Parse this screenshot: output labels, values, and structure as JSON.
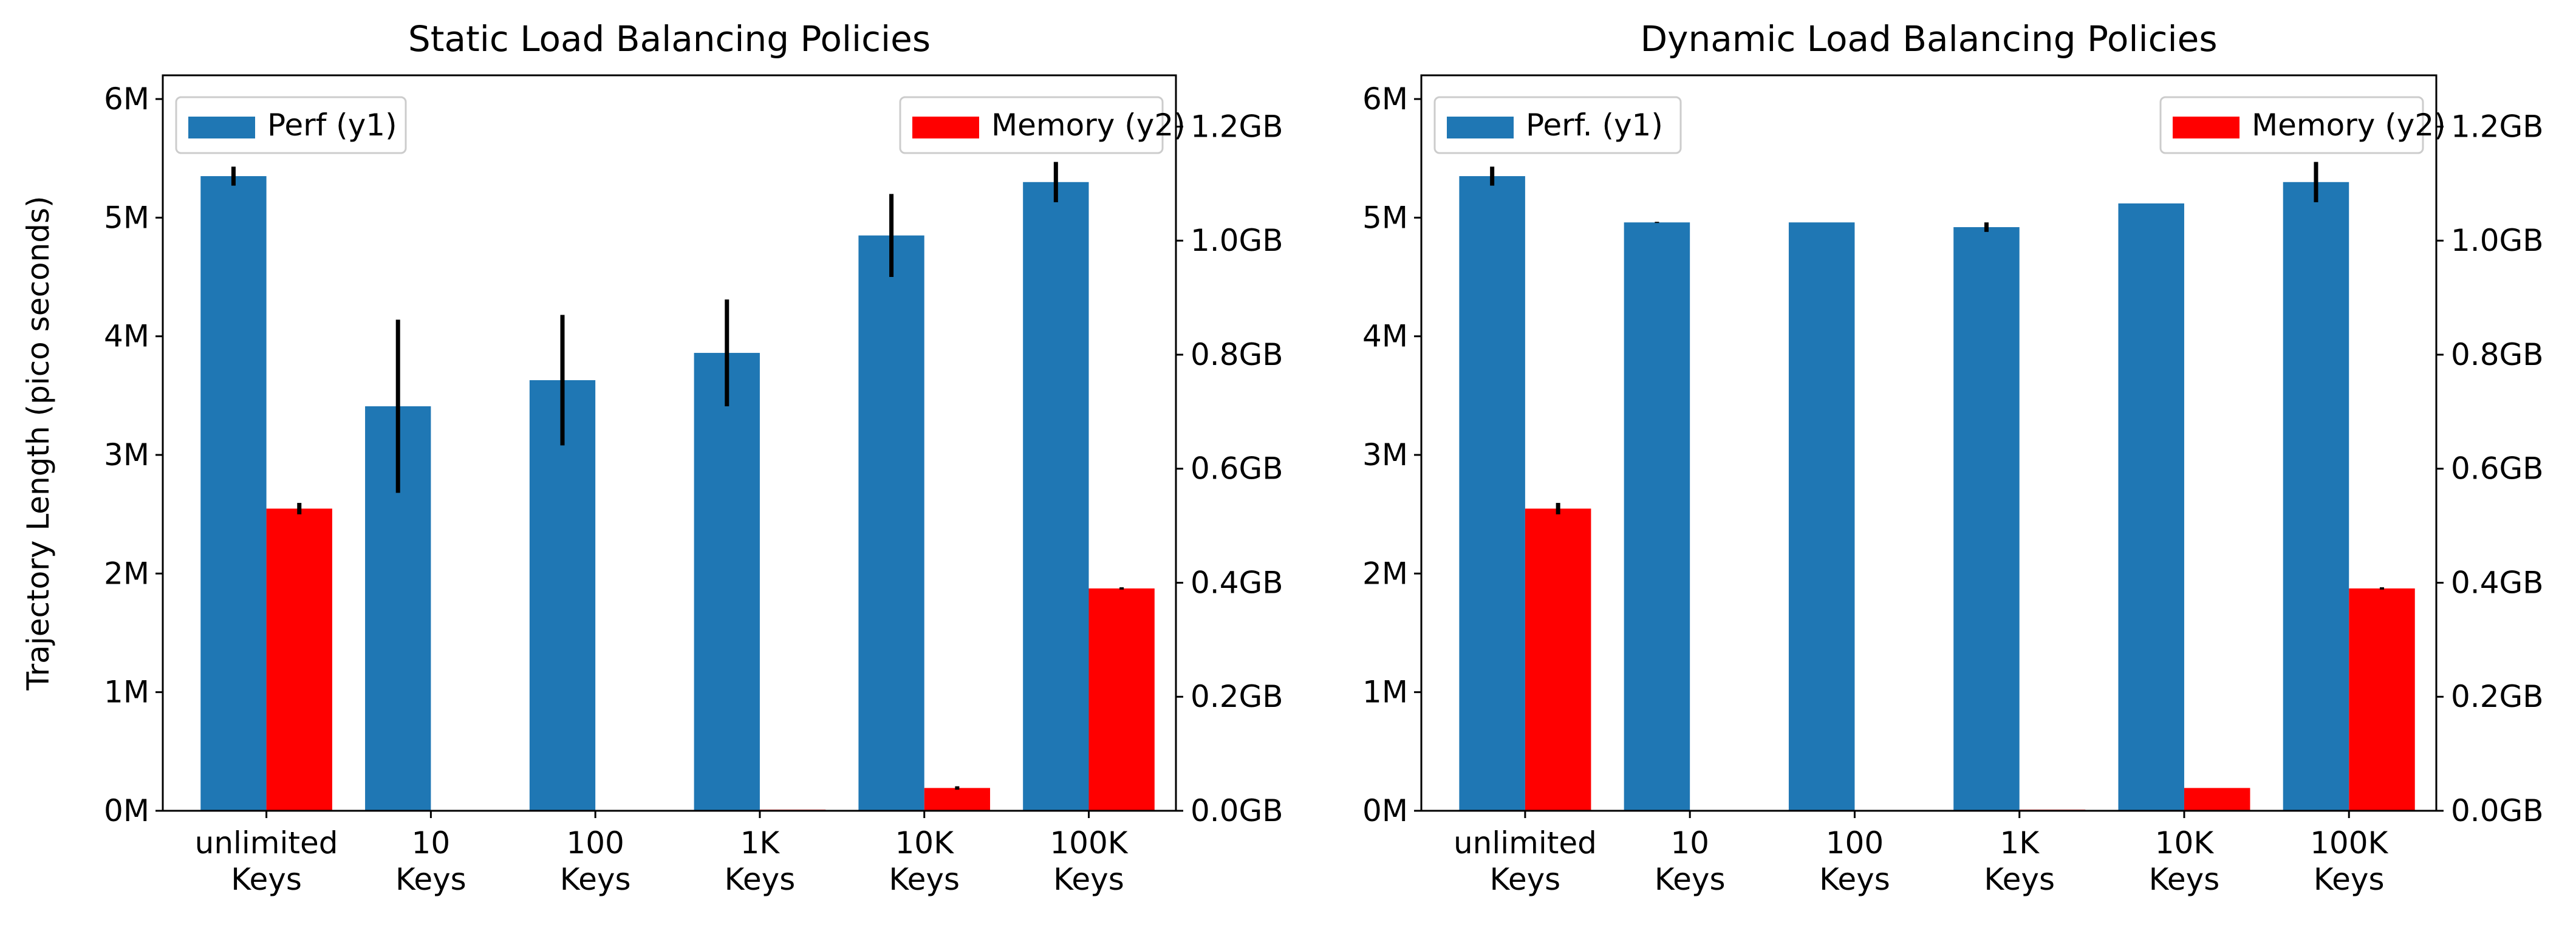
{
  "chart_data": [
    {
      "type": "bar",
      "title": "Static Load Balancing Policies",
      "ylabel": "Trajectory Length (pico seconds)",
      "categories": [
        [
          "unlimited",
          "Keys"
        ],
        [
          "10",
          "Keys"
        ],
        [
          "100",
          "Keys"
        ],
        [
          "1K",
          "Keys"
        ],
        [
          "10K",
          "Keys"
        ],
        [
          "100K",
          "Keys"
        ]
      ],
      "y1_ticks": [
        {
          "value": 0,
          "label": "0M"
        },
        {
          "value": 1000000,
          "label": "1M"
        },
        {
          "value": 2000000,
          "label": "2M"
        },
        {
          "value": 3000000,
          "label": "3M"
        },
        {
          "value": 4000000,
          "label": "4M"
        },
        {
          "value": 5000000,
          "label": "5M"
        },
        {
          "value": 6000000,
          "label": "6M"
        }
      ],
      "y2_ticks": [
        {
          "value": 0.0,
          "label": "0.0GB"
        },
        {
          "value": 0.2,
          "label": "0.2GB"
        },
        {
          "value": 0.4,
          "label": "0.4GB"
        },
        {
          "value": 0.6,
          "label": "0.6GB"
        },
        {
          "value": 0.8,
          "label": "0.8GB"
        },
        {
          "value": 1.0,
          "label": "1.0GB"
        },
        {
          "value": 1.2,
          "label": "1.2GB"
        }
      ],
      "y1_lim": [
        0,
        6200000
      ],
      "y2_lim": [
        0,
        1.29
      ],
      "series": [
        {
          "name": "Perf (y1)",
          "axis": "y1",
          "color": "#1f77b4",
          "values": [
            5350000,
            3410000,
            3630000,
            3860000,
            4850000,
            5300000
          ],
          "errors": [
            80000,
            730000,
            550000,
            450000,
            350000,
            170000
          ]
        },
        {
          "name": "Memory (y2)",
          "axis": "y2",
          "color": "#ff0000",
          "values": [
            0.53,
            0.0,
            0.0,
            0.002,
            0.04,
            0.39
          ],
          "errors": [
            0.01,
            0,
            0,
            0,
            0.003,
            0.002
          ]
        }
      ],
      "legend": [
        "top-left",
        "top-right"
      ],
      "grid": false
    },
    {
      "type": "bar",
      "title": "Dynamic Load Balancing Policies",
      "ylabel": "",
      "categories": [
        [
          "unlimited",
          "Keys"
        ],
        [
          "10",
          "Keys"
        ],
        [
          "100",
          "Keys"
        ],
        [
          "1K",
          "Keys"
        ],
        [
          "10K",
          "Keys"
        ],
        [
          "100K",
          "Keys"
        ]
      ],
      "y1_ticks": [
        {
          "value": 0,
          "label": "0M"
        },
        {
          "value": 1000000,
          "label": "1M"
        },
        {
          "value": 2000000,
          "label": "2M"
        },
        {
          "value": 3000000,
          "label": "3M"
        },
        {
          "value": 4000000,
          "label": "4M"
        },
        {
          "value": 5000000,
          "label": "5M"
        },
        {
          "value": 6000000,
          "label": "6M"
        }
      ],
      "y2_ticks": [
        {
          "value": 0.0,
          "label": "0.0GB"
        },
        {
          "value": 0.2,
          "label": "0.2GB"
        },
        {
          "value": 0.4,
          "label": "0.4GB"
        },
        {
          "value": 0.6,
          "label": "0.6GB"
        },
        {
          "value": 0.8,
          "label": "0.8GB"
        },
        {
          "value": 1.0,
          "label": "1.0GB"
        },
        {
          "value": 1.2,
          "label": "1.2GB"
        }
      ],
      "y1_lim": [
        0,
        6200000
      ],
      "y2_lim": [
        0,
        1.29
      ],
      "series": [
        {
          "name": "Perf. (y1)",
          "axis": "y1",
          "color": "#1f77b4",
          "values": [
            5350000,
            4960000,
            4960000,
            4920000,
            5120000,
            5300000
          ],
          "errors": [
            80000,
            5000,
            0,
            40000,
            0,
            170000
          ]
        },
        {
          "name": "Memory (y2)",
          "axis": "y2",
          "color": "#ff0000",
          "values": [
            0.53,
            0.0,
            0.0,
            0.002,
            0.04,
            0.39
          ],
          "errors": [
            0.01,
            0,
            0,
            0,
            0,
            0.002
          ]
        }
      ],
      "legend": [
        "top-left",
        "top-right"
      ],
      "grid": false
    }
  ]
}
